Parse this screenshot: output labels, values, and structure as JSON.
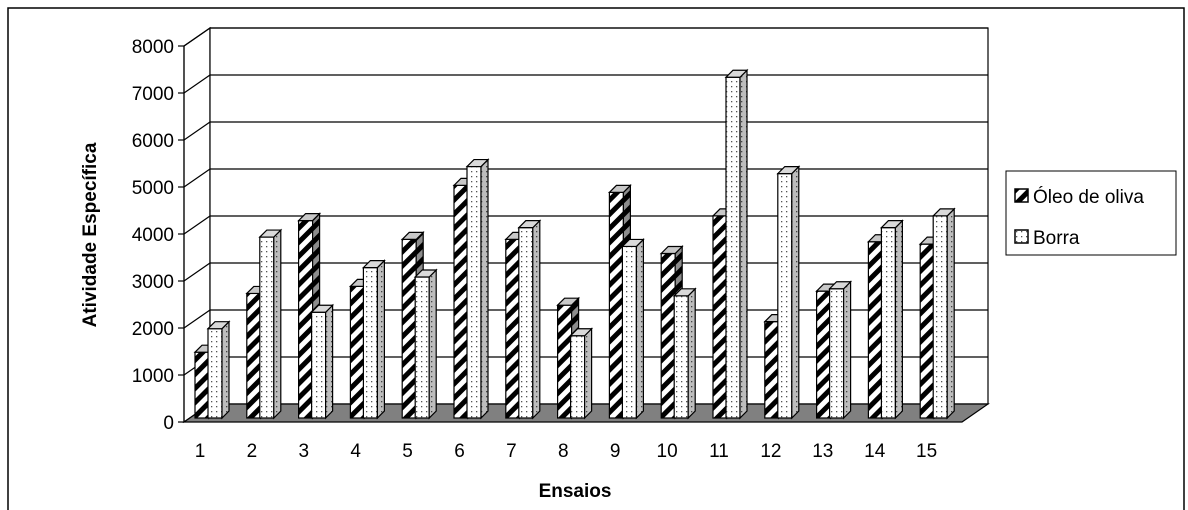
{
  "chart_data": {
    "type": "bar",
    "title": "",
    "xlabel": "Ensaios",
    "ylabel": "Atividade Específica",
    "categories": [
      "1",
      "2",
      "3",
      "4",
      "5",
      "6",
      "7",
      "8",
      "9",
      "10",
      "11",
      "12",
      "13",
      "14",
      "15"
    ],
    "series": [
      {
        "name": "Óleo de oliva",
        "values": [
          1400,
          2650,
          4200,
          2800,
          3800,
          4950,
          3800,
          2400,
          4800,
          3500,
          4300,
          2050,
          2700,
          3750,
          3700
        ],
        "pattern": "diagonal-hatch"
      },
      {
        "name": "Borra",
        "values": [
          1900,
          3850,
          2250,
          3200,
          3000,
          5350,
          4050,
          1750,
          3650,
          2600,
          7250,
          5200,
          2750,
          4050,
          4300
        ],
        "pattern": "dotted"
      }
    ],
    "ylim": [
      0,
      8000
    ],
    "yticks": [
      "0",
      "1000",
      "2000",
      "3000",
      "4000",
      "5000",
      "6000",
      "7000",
      "8000"
    ],
    "grid": true,
    "legend_position": "right",
    "style": "3d-clustered-column"
  }
}
